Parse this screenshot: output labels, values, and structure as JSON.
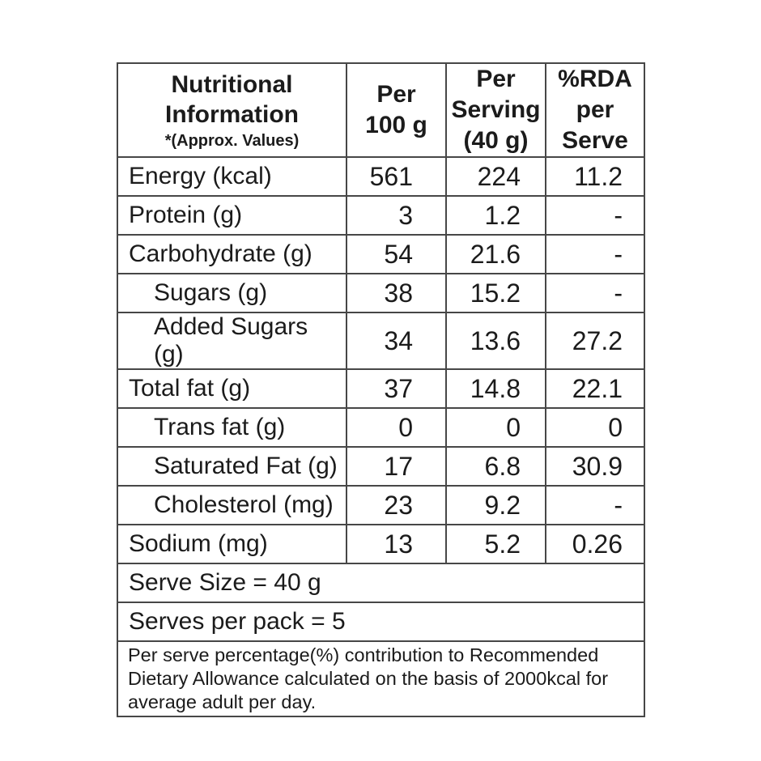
{
  "table": {
    "header": {
      "title": "Nutritional\nInformation",
      "subtitle": "*(Approx. Values)",
      "col_per_100g": "Per\n100 g",
      "col_per_serving": "Per\nServing\n(40 g)",
      "col_rda": "%RDA\nper\nServe"
    },
    "rows": [
      {
        "label": "Energy (kcal)",
        "per_100g": "561",
        "per_serving": "224",
        "rda": "11.2"
      },
      {
        "label": "Protein (g)",
        "per_100g": "3",
        "per_serving": "1.2",
        "rda": "-"
      },
      {
        "label": "Carbohydrate (g)",
        "per_100g": "54",
        "per_serving": "21.6",
        "rda": "-"
      },
      {
        "label": "Sugars (g)",
        "per_100g": "38",
        "per_serving": "15.2",
        "rda": "-"
      },
      {
        "label": "Added Sugars (g)",
        "per_100g": "34",
        "per_serving": "13.6",
        "rda": "27.2"
      },
      {
        "label": "Total fat (g)",
        "per_100g": "37",
        "per_serving": "14.8",
        "rda": "22.1"
      },
      {
        "label": "Trans fat (g)",
        "per_100g": "0",
        "per_serving": "0",
        "rda": "0"
      },
      {
        "label": "Saturated Fat (g)",
        "per_100g": "17",
        "per_serving": "6.8",
        "rda": "30.9"
      },
      {
        "label": "Cholesterol (mg)",
        "per_100g": "23",
        "per_serving": "9.2",
        "rda": "-"
      },
      {
        "label": "Sodium (mg)",
        "per_100g": "13",
        "per_serving": "5.2",
        "rda": "0.26"
      }
    ],
    "serve_size": "Serve Size = 40 g",
    "serves_per_pack": "Serves per pack = 5",
    "footnote": "Per serve percentage(%) contribution to Recommended\nDietary Allowance calculated on the basis of 2000kcal for\naverage adult per day."
  },
  "colors": {
    "border": "#474747",
    "text": "#1b1b1b",
    "background": "#ffffff"
  }
}
